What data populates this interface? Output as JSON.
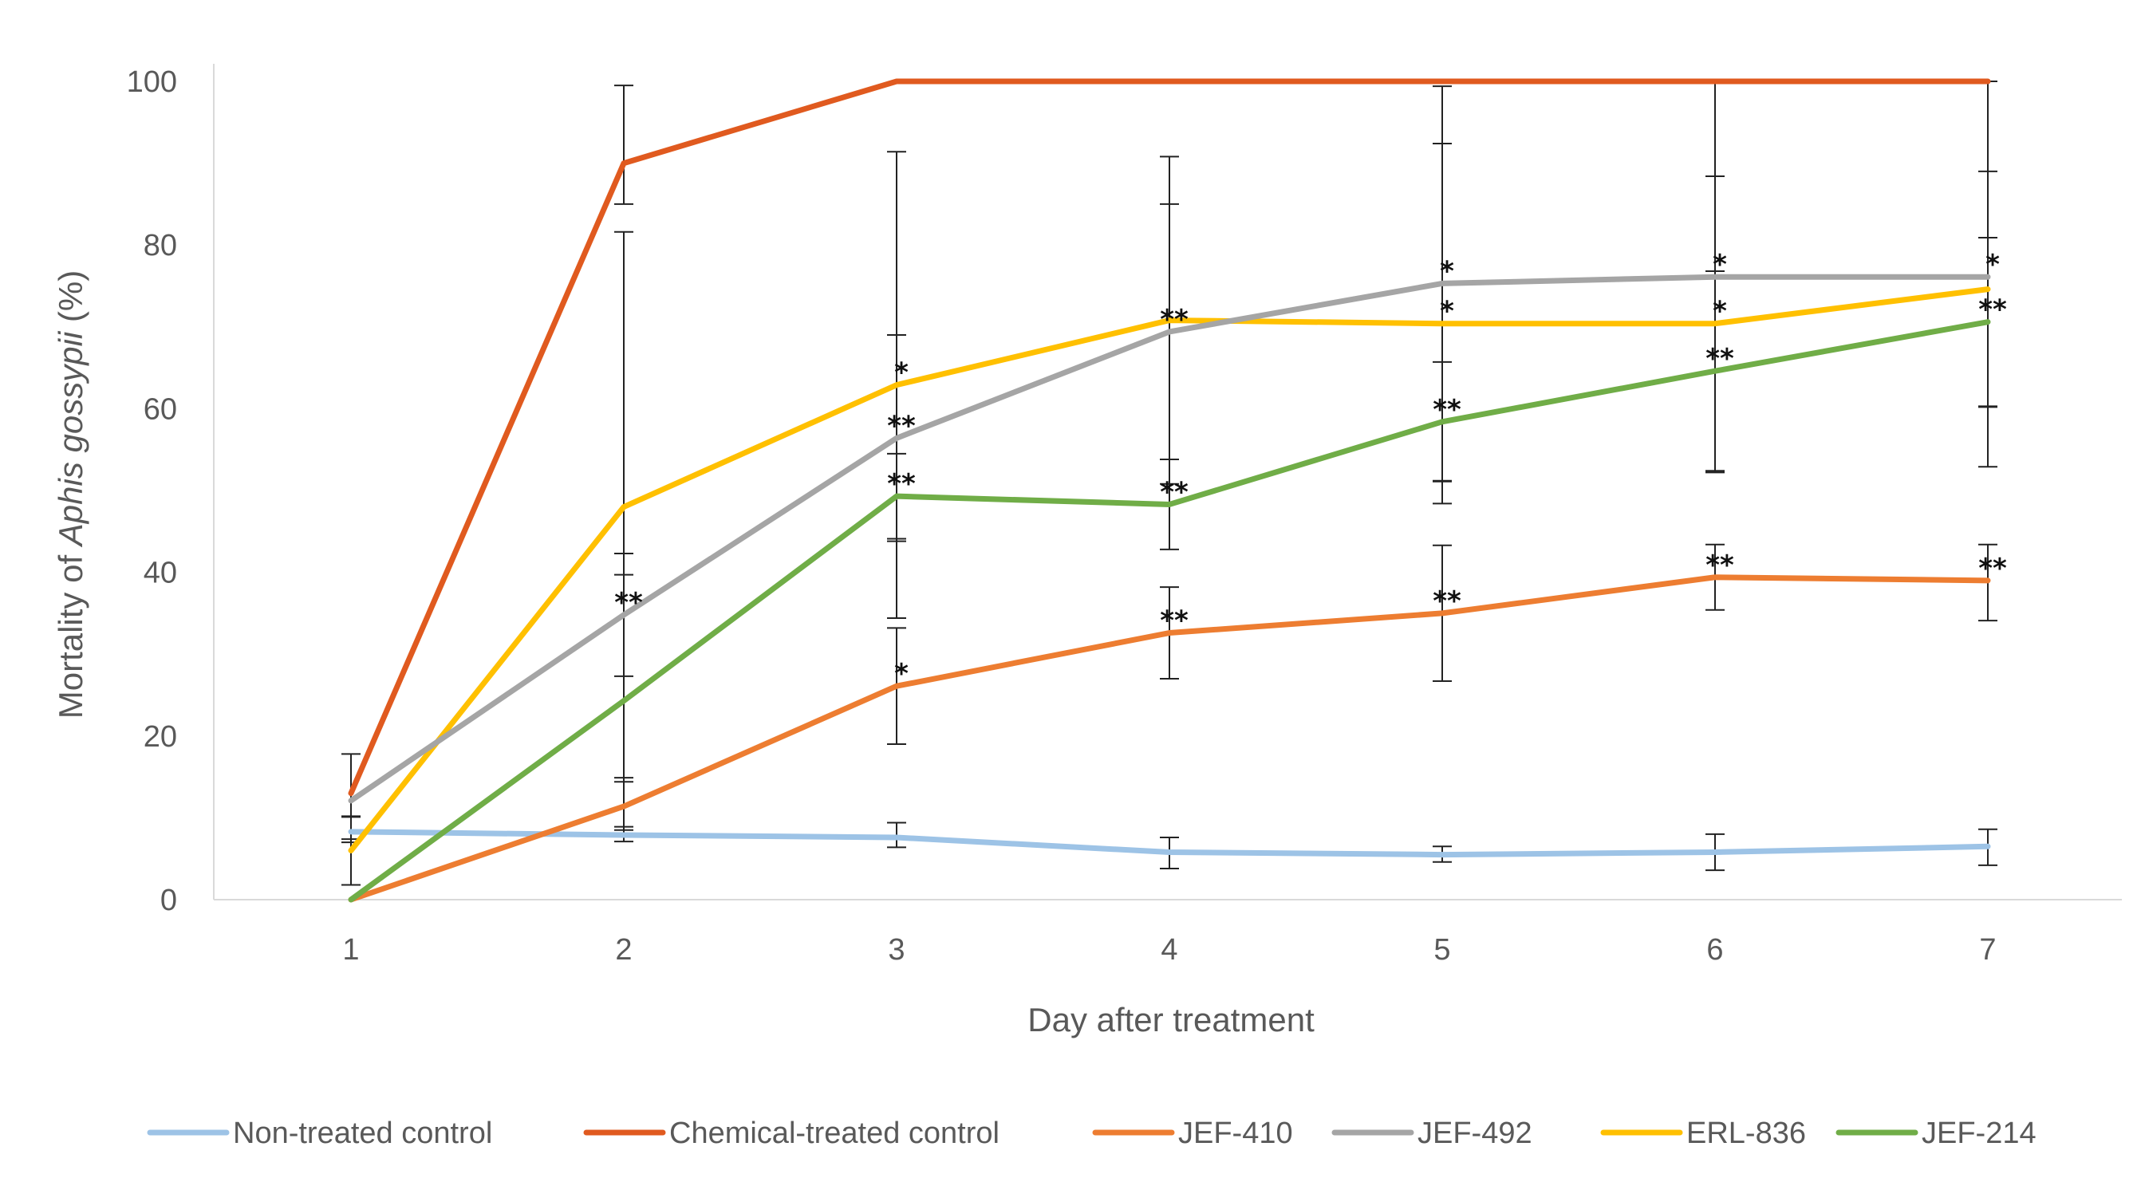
{
  "chart_data": {
    "type": "line",
    "title": "",
    "xlabel": "Day after treatment",
    "ylabel_parts": [
      "Mortality of ",
      "Aphis gossypii",
      " (%)"
    ],
    "categories": [
      "1",
      "2",
      "3",
      "4",
      "5",
      "6",
      "7"
    ],
    "ylim": [
      0,
      100
    ],
    "yticks": [
      "0",
      "20",
      "40",
      "60",
      "80",
      "100"
    ],
    "grid": false,
    "legend_position": "bottom",
    "series": [
      {
        "name": "Non-treated control",
        "color": "#9dc3e6",
        "values": [
          8.3,
          7.9,
          7.6,
          5.8,
          5.5,
          5.8,
          6.5
        ],
        "err_low": [
          1.3,
          0.8,
          1.2,
          2.0,
          0.9,
          2.2,
          2.3
        ],
        "err_high": [
          1.8,
          0.6,
          1.8,
          1.8,
          1.0,
          2.2,
          2.1
        ],
        "marks": [
          "",
          "",
          "",
          "",
          "",
          "",
          ""
        ]
      },
      {
        "name": "Chemical-treated control",
        "color": "#e05a1f",
        "values": [
          13.0,
          90.0,
          100,
          100,
          100,
          100,
          100
        ],
        "err_low": [
          0,
          5.0,
          0,
          0,
          0,
          0,
          0
        ],
        "err_high": [
          0,
          9.5,
          0,
          0,
          0,
          0,
          0
        ],
        "marks": [
          "",
          "",
          "",
          "",
          "",
          "",
          ""
        ]
      },
      {
        "name": "JEF-410",
        "color": "#ed7d31",
        "values": [
          0,
          11.4,
          26.1,
          32.6,
          35.0,
          39.4,
          39.0
        ],
        "err_low": [
          0,
          3.5,
          7.1,
          5.6,
          8.3,
          4.0,
          4.9
        ],
        "err_high": [
          0,
          3.5,
          7.1,
          5.6,
          8.3,
          4.0,
          4.4
        ],
        "marks": [
          "",
          "",
          "*",
          "**",
          "**",
          "**",
          "**"
        ]
      },
      {
        "name": "JEF-492",
        "color": "#a5a5a5",
        "values": [
          12.1,
          34.8,
          56.4,
          69.4,
          75.3,
          76.1,
          76.1
        ],
        "err_low": [
          4.7,
          7.5,
          12.6,
          15.6,
          24.1,
          23.9,
          23.2
        ],
        "err_high": [
          5.7,
          7.5,
          12.6,
          15.6,
          24.1,
          23.9,
          23.9
        ],
        "marks": [
          "",
          "**",
          "**",
          "**",
          "*",
          "*",
          "*"
        ]
      },
      {
        "name": "ERL-836",
        "color": "#ffc000",
        "values": [
          6.0,
          48.0,
          62.9,
          70.8,
          70.4,
          70.4,
          74.6
        ],
        "err_low": [
          4.2,
          33.6,
          28.5,
          20.0,
          22.0,
          18.0,
          14.4
        ],
        "err_high": [
          4.2,
          33.6,
          28.5,
          20.0,
          22.0,
          18.0,
          14.4
        ],
        "marks": [
          "",
          "",
          "*",
          "",
          "*",
          "*",
          ""
        ]
      },
      {
        "name": "JEF-214",
        "color": "#70ad47",
        "values": [
          0,
          24.3,
          49.3,
          48.3,
          58.4,
          64.6,
          70.6
        ],
        "err_low": [
          0,
          15.4,
          5.2,
          5.5,
          7.3,
          12.2,
          10.3
        ],
        "err_high": [
          0,
          15.4,
          5.2,
          5.5,
          7.3,
          12.2,
          10.3
        ],
        "marks": [
          "",
          "",
          "**",
          "**",
          "**",
          "**",
          "**"
        ]
      }
    ]
  }
}
